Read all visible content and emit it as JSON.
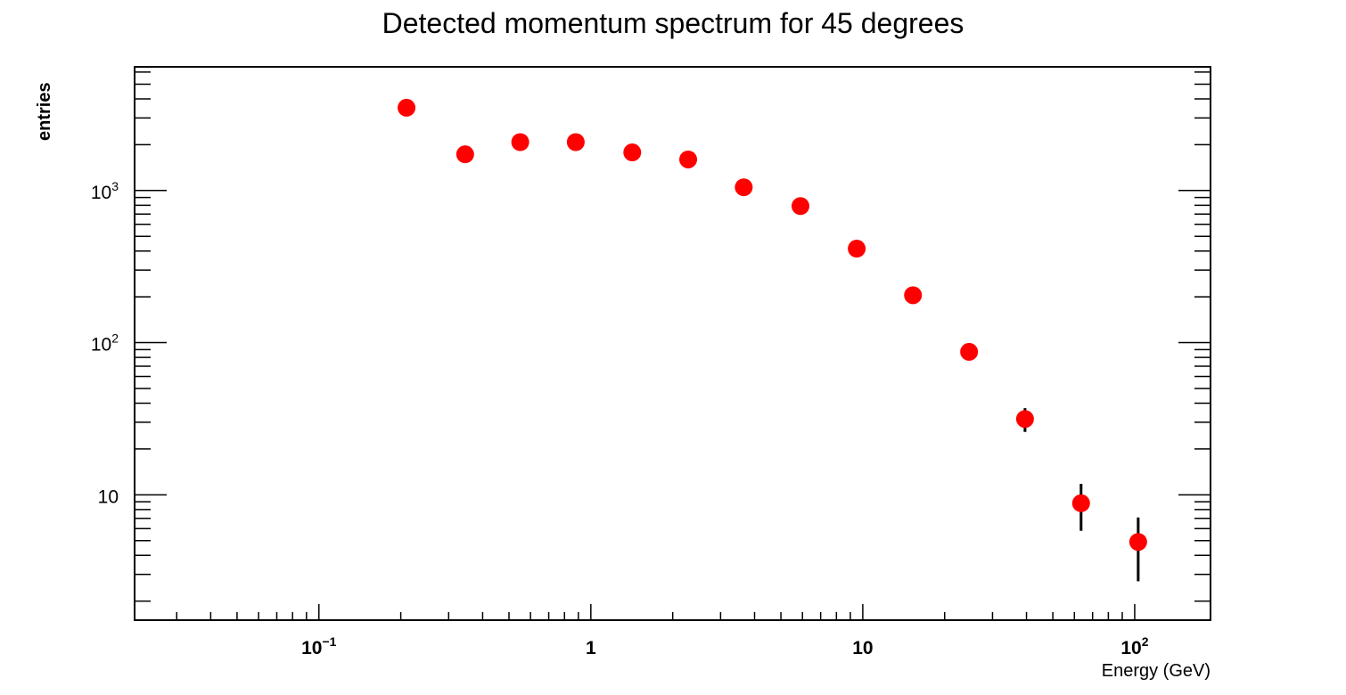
{
  "chart_data": {
    "type": "scatter",
    "title": "Detected momentum spectrum for 45 degrees",
    "xlabel": "Energy (GeV)",
    "ylabel": "entries",
    "xscale": "log",
    "yscale": "log",
    "xlim": [
      0.021,
      190
    ],
    "ylim": [
      1.5,
      6500
    ],
    "grid": false,
    "marker_color": "#ff0000",
    "errorbar_color": "#000000",
    "x_ticks": [
      {
        "value": 0.1,
        "base": "10",
        "exp": "−1"
      },
      {
        "value": 1,
        "base": "1",
        "exp": ""
      },
      {
        "value": 10,
        "base": "10",
        "exp": ""
      },
      {
        "value": 100,
        "base": "10",
        "exp": "2"
      }
    ],
    "y_ticks": [
      {
        "value": 10,
        "base": "10",
        "exp": ""
      },
      {
        "value": 100,
        "base": "10",
        "exp": "2"
      },
      {
        "value": 1000,
        "base": "10",
        "exp": "3"
      }
    ],
    "series": [
      {
        "x": [
          0.21,
          0.345,
          0.55,
          0.88,
          1.42,
          2.28,
          3.65,
          5.9,
          9.5,
          15.3,
          24.6,
          39.5,
          63.5,
          103
        ],
        "y": [
          3500,
          1730,
          2080,
          2080,
          1780,
          1600,
          1050,
          790,
          415,
          205,
          87,
          31.5,
          8.8,
          4.9
        ],
        "yerr": [
          59,
          42,
          46,
          46,
          42,
          40,
          32,
          28,
          20,
          14,
          9.3,
          5.6,
          3.0,
          2.2
        ]
      }
    ]
  }
}
